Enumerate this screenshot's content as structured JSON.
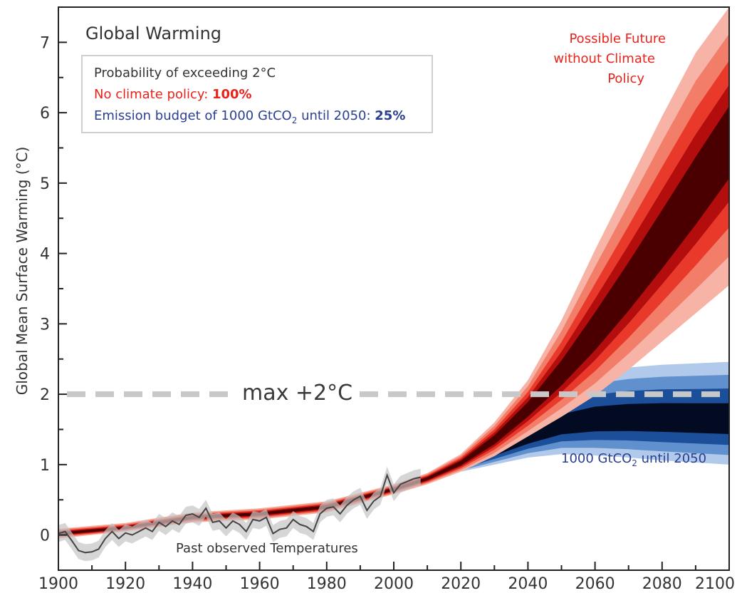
{
  "chart_data": {
    "type": "area",
    "title": "Global Warming",
    "xlabel": "",
    "ylabel": "Global Mean Surface Warming (°C)",
    "xlim": [
      1900,
      2100
    ],
    "ylim": [
      -0.5,
      7.5
    ],
    "x_ticks": [
      1900,
      1920,
      1940,
      1960,
      1980,
      2000,
      2020,
      2040,
      2060,
      2080,
      2100
    ],
    "y_ticks": [
      0,
      1,
      2,
      3,
      4,
      5,
      6,
      7
    ],
    "legend_box": {
      "heading": "Probability of exceeding 2°C",
      "no_policy_label": "No climate policy: ",
      "no_policy_value": "100%",
      "budget_label_a": "Emission budget of 1000 GtCO",
      "budget_sub": "2",
      "budget_label_b": " until 2050: ",
      "budget_value": "25%"
    },
    "threshold": {
      "value": 2,
      "label": "max +2°C"
    },
    "annotations": {
      "future_line1": "Possible Future",
      "future_line2": "without Climate",
      "future_line3": "Policy",
      "budget_a": "1000 GtCO",
      "budget_sub": "2",
      "budget_b": " until 2050",
      "observed": "Past observed Temperatures"
    },
    "colors": {
      "red_outer": "#f6b3a6",
      "red_mid": "#e8392a",
      "red_core": "#4a0000",
      "blue_outer": "#a9c3e8",
      "blue_mid": "#1c4f9a",
      "blue_core": "#030b22",
      "observed": "#444444",
      "threshold": "#c8c8c8",
      "red_text": "#e8231c",
      "blue_text": "#2a3f8f"
    },
    "series": [
      {
        "name": "Past observed Temperatures",
        "x": [
          1900,
          1902,
          1904,
          1906,
          1908,
          1910,
          1912,
          1914,
          1916,
          1918,
          1920,
          1922,
          1924,
          1926,
          1928,
          1930,
          1932,
          1934,
          1936,
          1938,
          1940,
          1942,
          1944,
          1946,
          1948,
          1950,
          1952,
          1954,
          1956,
          1958,
          1960,
          1962,
          1964,
          1966,
          1968,
          1970,
          1972,
          1974,
          1976,
          1978,
          1980,
          1982,
          1984,
          1986,
          1988,
          1990,
          1992,
          1994,
          1996,
          1998,
          2000,
          2002,
          2004,
          2006,
          2008
        ],
        "values": [
          0.02,
          0.05,
          -0.08,
          -0.22,
          -0.25,
          -0.24,
          -0.2,
          -0.05,
          0.05,
          -0.05,
          0.03,
          0.0,
          0.05,
          0.1,
          0.05,
          0.18,
          0.12,
          0.2,
          0.15,
          0.28,
          0.3,
          0.25,
          0.38,
          0.18,
          0.2,
          0.1,
          0.2,
          0.15,
          0.05,
          0.22,
          0.2,
          0.25,
          0.02,
          0.08,
          0.1,
          0.22,
          0.15,
          0.12,
          0.05,
          0.3,
          0.38,
          0.4,
          0.3,
          0.42,
          0.5,
          0.55,
          0.35,
          0.48,
          0.55,
          0.85,
          0.6,
          0.72,
          0.76,
          0.8,
          0.82
        ]
      },
      {
        "name": "No climate policy",
        "x": [
          1900,
          1920,
          1940,
          1960,
          1980,
          2000,
          2010,
          2020,
          2030,
          2040,
          2050,
          2060,
          2070,
          2080,
          2090,
          2100
        ],
        "values": [
          0.02,
          0.1,
          0.25,
          0.3,
          0.4,
          0.65,
          0.8,
          1.02,
          1.35,
          1.78,
          2.28,
          2.85,
          3.48,
          4.15,
          4.85,
          5.6
        ],
        "low_90": [
          -0.05,
          0.05,
          0.18,
          0.22,
          0.32,
          0.58,
          0.72,
          0.9,
          1.12,
          1.4,
          1.68,
          1.98,
          2.35,
          2.75,
          3.15,
          3.55
        ],
        "high_90": [
          0.09,
          0.17,
          0.32,
          0.38,
          0.48,
          0.72,
          0.88,
          1.15,
          1.6,
          2.2,
          3.05,
          4.05,
          5.0,
          5.95,
          6.85,
          7.5
        ]
      },
      {
        "name": "1000 GtCO2 until 2050",
        "x": [
          2010,
          2020,
          2030,
          2040,
          2050,
          2060,
          2070,
          2080,
          2090,
          2100
        ],
        "values": [
          0.8,
          0.98,
          1.18,
          1.38,
          1.55,
          1.62,
          1.64,
          1.64,
          1.63,
          1.62
        ],
        "low_90": [
          0.76,
          0.9,
          1.0,
          1.1,
          1.15,
          1.13,
          1.1,
          1.06,
          1.03,
          1.0
        ],
        "high_90": [
          0.84,
          1.05,
          1.35,
          1.72,
          2.1,
          2.3,
          2.38,
          2.42,
          2.44,
          2.46
        ]
      }
    ]
  }
}
